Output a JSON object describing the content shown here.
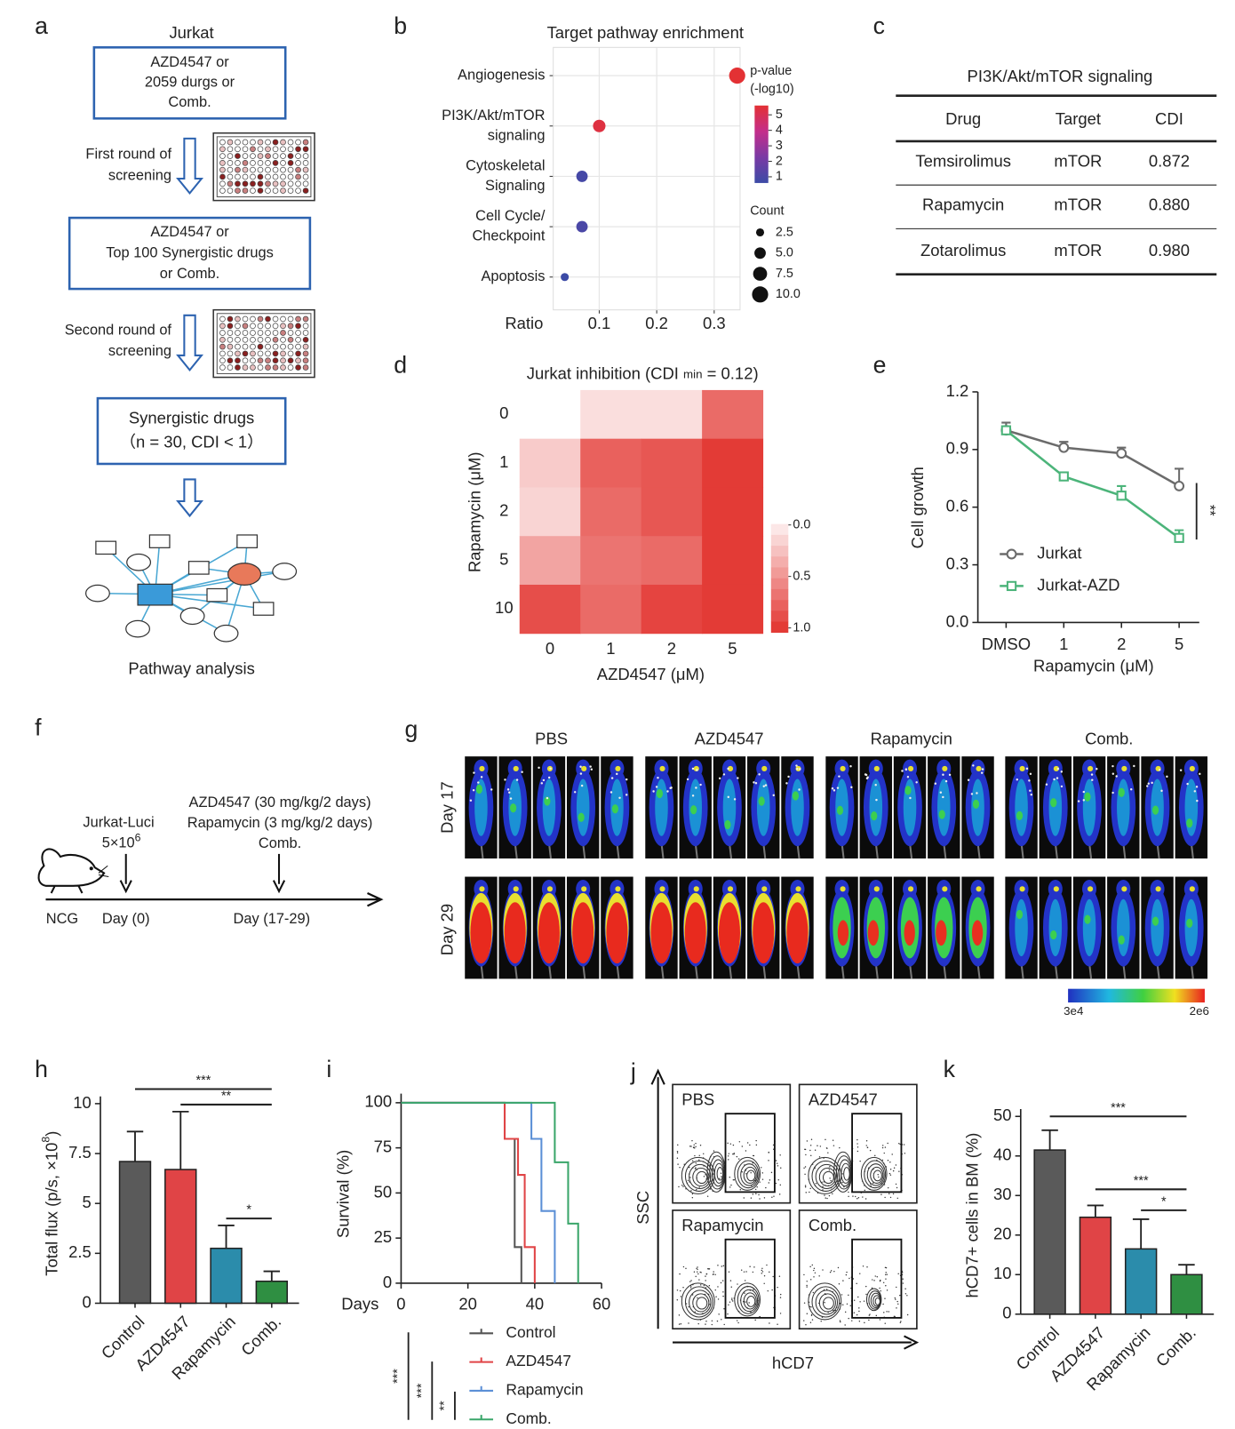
{
  "panel_labels": [
    "a",
    "b",
    "c",
    "d",
    "e",
    "f",
    "g",
    "h",
    "i",
    "j",
    "k"
  ],
  "a": {
    "cell_line": "Jurkat",
    "box1": [
      "AZD4547 or",
      "2059 durgs or",
      "Comb."
    ],
    "step1": [
      "First round of",
      "screening"
    ],
    "box2": [
      "AZD4547 or",
      "Top 100 Synergistic drugs",
      "or Comb."
    ],
    "step2": [
      "Second round of",
      "screening"
    ],
    "box3": [
      "Synergistic drugs",
      "（n = 30, CDI < 1）"
    ],
    "result": "Pathway analysis"
  },
  "c": {
    "title": "PI3K/Akt/mTOR signaling",
    "columns": [
      "Drug",
      "Target",
      "CDI"
    ],
    "rows": [
      [
        "Temsirolimus",
        "mTOR",
        "0.872"
      ],
      [
        "Rapamycin",
        "mTOR",
        "0.880"
      ],
      [
        "Zotarolimus",
        "mTOR",
        "0.980"
      ]
    ]
  },
  "f": {
    "treatments": [
      "AZD4547 (30 mg/kg/2 days)",
      "Rapamycin (3 mg/kg/2 days)",
      "Comb."
    ],
    "cells": "Jurkat-Luci",
    "dose": "5×10",
    "dose_exp": "6",
    "model": "NCG",
    "day_inject": "Day (0)",
    "day_treat": "Day (17-29)"
  },
  "g": {
    "groups": [
      "PBS",
      "AZD4547",
      "Rapamycin",
      "Comb."
    ],
    "rows": [
      "Day 17",
      "Day 29"
    ],
    "colorbar_labels": [
      "3e4",
      "2e6"
    ]
  },
  "j": {
    "panels": [
      "PBS",
      "AZD4547",
      "Rapamycin",
      "Comb."
    ],
    "ylabel": "SSC",
    "xlabel": "hCD7"
  },
  "chart_data": [
    {
      "type": "bubble",
      "title": "Target pathway enrichment",
      "categories": [
        [
          "Angiogenesis"
        ],
        [
          "PI3K/Akt/mTOR",
          "signaling"
        ],
        [
          "Cytoskeletal",
          "Signaling"
        ],
        [
          "Cell Cycle/",
          "Checkpoint"
        ],
        [
          "Apoptosis"
        ]
      ],
      "values": [
        0.34,
        0.1,
        0.07,
        0.07,
        0.04
      ],
      "pvalue_log10": [
        5,
        4.8,
        1.2,
        1.3,
        1
      ],
      "counts": [
        10,
        6,
        5,
        5,
        2.5
      ],
      "xlabel": "Ratio",
      "xlim": [
        0.02,
        0.345
      ],
      "xticks": [
        0.1,
        0.2,
        0.3
      ],
      "grid": true,
      "color_legend_title": [
        "p-value",
        "(-log10)"
      ],
      "color_ticks": [
        1,
        2,
        3,
        4,
        5
      ],
      "colors": [
        "#3c4ba6",
        "#7a3aa5",
        "#c42e8a",
        "#e33134"
      ],
      "size_legend_title": "Count",
      "size_ticks": [
        2.5,
        {
          "value": 5,
          "label": "5.0"
        },
        7.5,
        {
          "value": 10,
          "label": "10.0"
        }
      ]
    },
    {
      "type": "heatmap",
      "title": [
        "Jurkat  inhibition (CDI ",
        "min",
        " = 0.12)"
      ],
      "categories": [
        0,
        1,
        2,
        5
      ],
      "rows": [
        0,
        1,
        2,
        5,
        10
      ],
      "values": [
        [
          null,
          0.1,
          0.1,
          0.7
        ],
        [
          0.2,
          0.75,
          0.8,
          0.95
        ],
        [
          0.15,
          0.7,
          0.8,
          0.95
        ],
        [
          0.4,
          0.65,
          0.7,
          0.95
        ],
        [
          0.85,
          0.7,
          0.9,
          0.95
        ]
      ],
      "xlabel": "AZD4547 (μM)",
      "ylabel": "Rapamycin (μM)",
      "colors": [
        "#fdf1f1",
        "#e2312c"
      ],
      "colorbar_ticks": [
        {
          "value": 0,
          "label": "0.0"
        },
        {
          "value": 0.5,
          "label": "0.5"
        },
        {
          "value": 1,
          "label": "1.0"
        }
      ]
    },
    {
      "type": "line",
      "categories": [
        "DMSO",
        1,
        2,
        5
      ],
      "series": [
        {
          "name": "Jurkat",
          "color": "#6b6b6b",
          "marker": "circle",
          "values": [
            1.0,
            0.91,
            0.88,
            0.71
          ],
          "errors": [
            0.04,
            0.03,
            0.03,
            0.09
          ]
        },
        {
          "name": "Jurkat-AZD",
          "color": "#4cb47a",
          "marker": "square",
          "values": [
            1.0,
            0.76,
            0.66,
            0.44
          ],
          "errors": [
            0.02,
            0.01,
            0.05,
            0.04
          ]
        }
      ],
      "ylabel": "Cell growth",
      "xlabel": "Rapamycin (μM)",
      "ylim": [
        0,
        1.2
      ],
      "yticks": [
        {
          "value": 0,
          "label": "0.0"
        },
        0.3,
        0.6,
        0.9,
        1.2
      ],
      "annotations": [
        "**"
      ]
    },
    {
      "type": "bar",
      "categories": [
        "Control",
        "AZD4547",
        "Rapamycin",
        "Comb."
      ],
      "values": [
        7.1,
        6.7,
        2.75,
        1.1
      ],
      "errors": [
        1.5,
        2.9,
        1.15,
        0.5
      ],
      "colors": [
        "#5a5a5a",
        "#e04446",
        "#2b8cab",
        "#2f8f42"
      ],
      "ylabel": [
        "Total flux (p/s, ×10",
        "8",
        ")"
      ],
      "ylim": [
        0,
        10
      ],
      "yticks": [
        0,
        2.5,
        5,
        7.5,
        10
      ],
      "significance": [
        "***",
        "**",
        "*"
      ]
    },
    {
      "type": "step",
      "series": [
        {
          "name": "Control",
          "color": "#555555",
          "x": [
            0,
            31,
            34,
            36
          ],
          "values": [
            100,
            80,
            20,
            0
          ]
        },
        {
          "name": "AZD4547",
          "color": "#e04446",
          "x": [
            0,
            31,
            35,
            37,
            40
          ],
          "values": [
            100,
            80,
            60,
            20,
            0
          ]
        },
        {
          "name": "Rapamycin",
          "color": "#5b8fd6",
          "x": [
            0,
            39,
            42,
            46
          ],
          "values": [
            100,
            80,
            40,
            0
          ]
        },
        {
          "name": "Comb.",
          "color": "#3aa66a",
          "x": [
            0,
            46,
            50,
            53
          ],
          "values": [
            100,
            67,
            33,
            0
          ]
        }
      ],
      "xlabel": "Days",
      "ylabel": "Survival (%)",
      "xlim": [
        0,
        60
      ],
      "xticks": [
        0,
        20,
        40,
        60
      ],
      "ylim": [
        0,
        100
      ],
      "yticks": [
        0,
        25,
        50,
        75,
        100
      ],
      "significance": [
        "***",
        "***",
        "**"
      ]
    },
    {
      "type": "bar",
      "categories": [
        "Control",
        "AZD4547",
        "Rapamycin",
        "Comb."
      ],
      "values": [
        41.5,
        24.5,
        16.5,
        10
      ],
      "errors": [
        5,
        3,
        7.5,
        2.5
      ],
      "colors": [
        "#5a5a5a",
        "#e04446",
        "#2b8cab",
        "#2f8f42"
      ],
      "ylabel": [
        "hCD7+ cells in BM (%)"
      ],
      "ylim": [
        0,
        50
      ],
      "yticks": [
        0,
        10,
        20,
        30,
        40,
        50
      ],
      "significance": [
        "***",
        "***",
        "*"
      ]
    }
  ]
}
